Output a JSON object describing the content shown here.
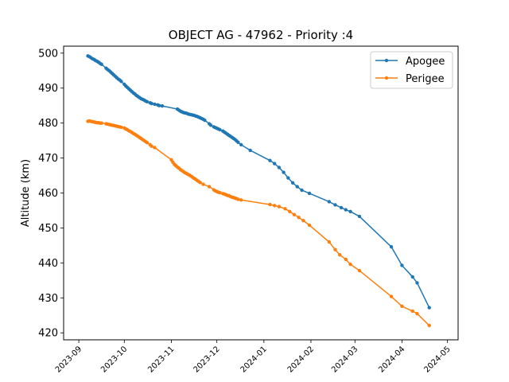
{
  "chart_data": {
    "type": "line",
    "title": "OBJECT AG - 47962 - Priority :4",
    "xlabel": "",
    "ylabel": "Altitude (km)",
    "x_type": "date",
    "xlim": [
      "2023-08-22",
      "2024-05-08"
    ],
    "ylim": [
      418,
      502
    ],
    "yticks": [
      420,
      430,
      440,
      450,
      460,
      470,
      480,
      490,
      500
    ],
    "xticks": [
      "2023-09",
      "2023-10",
      "2023-11",
      "2023-12",
      "2024-01",
      "2024-02",
      "2024-03",
      "2024-04",
      "2024-05"
    ],
    "grid": false,
    "legend_position": "top-right",
    "series": [
      {
        "name": "Apogee",
        "color": "#1f77b4",
        "points": [
          [
            "2023-09-07",
            499.2
          ],
          [
            "2023-09-08",
            499.0
          ],
          [
            "2023-09-09",
            498.7
          ],
          [
            "2023-09-10",
            498.4
          ],
          [
            "2023-09-11",
            498.2
          ],
          [
            "2023-09-12",
            497.9
          ],
          [
            "2023-09-13",
            497.7
          ],
          [
            "2023-09-14",
            497.4
          ],
          [
            "2023-09-15",
            497.1
          ],
          [
            "2023-09-16",
            496.8
          ],
          [
            "2023-09-19",
            495.7
          ],
          [
            "2023-09-20",
            495.3
          ],
          [
            "2023-09-21",
            495.0
          ],
          [
            "2023-09-22",
            494.6
          ],
          [
            "2023-09-23",
            494.2
          ],
          [
            "2023-09-24",
            493.8
          ],
          [
            "2023-09-25",
            493.4
          ],
          [
            "2023-09-26",
            493.0
          ],
          [
            "2023-09-27",
            492.6
          ],
          [
            "2023-09-28",
            492.3
          ],
          [
            "2023-09-29",
            491.9
          ],
          [
            "2023-10-01",
            491.1
          ],
          [
            "2023-10-02",
            490.6
          ],
          [
            "2023-10-03",
            490.2
          ],
          [
            "2023-10-04",
            489.8
          ],
          [
            "2023-10-05",
            489.4
          ],
          [
            "2023-10-06",
            489.0
          ],
          [
            "2023-10-07",
            488.6
          ],
          [
            "2023-10-08",
            488.3
          ],
          [
            "2023-10-09",
            487.9
          ],
          [
            "2023-10-10",
            487.6
          ],
          [
            "2023-10-11",
            487.3
          ],
          [
            "2023-10-12",
            487.0
          ],
          [
            "2023-10-13",
            486.8
          ],
          [
            "2023-10-14",
            486.6
          ],
          [
            "2023-10-15",
            486.3
          ],
          [
            "2023-10-16",
            486.1
          ],
          [
            "2023-10-18",
            485.8
          ],
          [
            "2023-10-19",
            485.6
          ],
          [
            "2023-10-21",
            485.4
          ],
          [
            "2023-10-23",
            485.2
          ],
          [
            "2023-10-24",
            485.0
          ],
          [
            "2023-10-26",
            484.9
          ],
          [
            "2023-11-05",
            484.0
          ],
          [
            "2023-11-06",
            483.7
          ],
          [
            "2023-11-07",
            483.4
          ],
          [
            "2023-11-08",
            483.2
          ],
          [
            "2023-11-09",
            483.0
          ],
          [
            "2023-11-10",
            482.9
          ],
          [
            "2023-11-11",
            482.8
          ],
          [
            "2023-11-12",
            482.6
          ],
          [
            "2023-11-13",
            482.5
          ],
          [
            "2023-11-14",
            482.4
          ],
          [
            "2023-11-15",
            482.3
          ],
          [
            "2023-11-16",
            482.2
          ],
          [
            "2023-11-17",
            482.0
          ],
          [
            "2023-11-18",
            481.9
          ],
          [
            "2023-11-19",
            481.7
          ],
          [
            "2023-11-20",
            481.5
          ],
          [
            "2023-11-21",
            481.3
          ],
          [
            "2023-11-22",
            481.1
          ],
          [
            "2023-11-23",
            480.8
          ],
          [
            "2023-11-26",
            479.8
          ],
          [
            "2023-11-27",
            479.4
          ],
          [
            "2023-11-29",
            478.9
          ],
          [
            "2023-11-30",
            478.7
          ],
          [
            "2023-12-01",
            478.5
          ],
          [
            "2023-12-02",
            478.3
          ],
          [
            "2023-12-03",
            478.1
          ],
          [
            "2023-12-05",
            477.7
          ],
          [
            "2023-12-06",
            477.4
          ],
          [
            "2023-12-07",
            477.1
          ],
          [
            "2023-12-08",
            476.8
          ],
          [
            "2023-12-09",
            476.5
          ],
          [
            "2023-12-10",
            476.2
          ],
          [
            "2023-12-11",
            475.9
          ],
          [
            "2023-12-12",
            475.6
          ],
          [
            "2023-12-13",
            475.3
          ],
          [
            "2023-12-14",
            474.9
          ],
          [
            "2023-12-15",
            474.5
          ],
          [
            "2023-12-17",
            473.8
          ],
          [
            "2023-12-23",
            472.2
          ],
          [
            "2024-01-05",
            469.3
          ],
          [
            "2024-01-08",
            468.4
          ],
          [
            "2024-01-11",
            467.3
          ],
          [
            "2024-01-14",
            465.9
          ],
          [
            "2024-01-17",
            464.3
          ],
          [
            "2024-01-20",
            462.9
          ],
          [
            "2024-01-23",
            461.8
          ],
          [
            "2024-01-26",
            460.8
          ],
          [
            "2024-01-31",
            459.9
          ],
          [
            "2024-02-13",
            457.5
          ],
          [
            "2024-02-17",
            456.6
          ],
          [
            "2024-02-21",
            455.8
          ],
          [
            "2024-02-24",
            455.2
          ],
          [
            "2024-02-27",
            454.7
          ],
          [
            "2024-03-04",
            453.3
          ],
          [
            "2024-03-25",
            444.6
          ],
          [
            "2024-04-01",
            439.3
          ],
          [
            "2024-04-08",
            436.0
          ],
          [
            "2024-04-11",
            434.3
          ],
          [
            "2024-04-19",
            427.2
          ]
        ]
      },
      {
        "name": "Perigee",
        "color": "#ff7f0e",
        "points": [
          [
            "2023-09-07",
            480.5
          ],
          [
            "2023-09-08",
            480.6
          ],
          [
            "2023-09-09",
            480.5
          ],
          [
            "2023-09-10",
            480.4
          ],
          [
            "2023-09-11",
            480.3
          ],
          [
            "2023-09-12",
            480.2
          ],
          [
            "2023-09-13",
            480.1
          ],
          [
            "2023-09-14",
            480.1
          ],
          [
            "2023-09-15",
            480.0
          ],
          [
            "2023-09-16",
            480.0
          ],
          [
            "2023-09-19",
            479.8
          ],
          [
            "2023-09-20",
            479.7
          ],
          [
            "2023-09-21",
            479.6
          ],
          [
            "2023-09-22",
            479.5
          ],
          [
            "2023-09-23",
            479.4
          ],
          [
            "2023-09-24",
            479.3
          ],
          [
            "2023-09-25",
            479.2
          ],
          [
            "2023-09-26",
            479.1
          ],
          [
            "2023-09-27",
            479.0
          ],
          [
            "2023-09-28",
            478.9
          ],
          [
            "2023-09-29",
            478.8
          ],
          [
            "2023-10-01",
            478.6
          ],
          [
            "2023-10-02",
            478.3
          ],
          [
            "2023-10-03",
            478.1
          ],
          [
            "2023-10-04",
            477.8
          ],
          [
            "2023-10-05",
            477.6
          ],
          [
            "2023-10-06",
            477.3
          ],
          [
            "2023-10-07",
            477.0
          ],
          [
            "2023-10-08",
            476.8
          ],
          [
            "2023-10-09",
            476.5
          ],
          [
            "2023-10-10",
            476.2
          ],
          [
            "2023-10-11",
            475.9
          ],
          [
            "2023-10-12",
            475.6
          ],
          [
            "2023-10-13",
            475.3
          ],
          [
            "2023-10-14",
            475.0
          ],
          [
            "2023-10-15",
            474.7
          ],
          [
            "2023-10-16",
            474.4
          ],
          [
            "2023-10-18",
            473.8
          ],
          [
            "2023-10-19",
            473.4
          ],
          [
            "2023-10-21",
            473.0
          ],
          [
            "2023-11-01",
            469.5
          ],
          [
            "2023-11-02",
            468.8
          ],
          [
            "2023-11-03",
            468.2
          ],
          [
            "2023-11-04",
            467.8
          ],
          [
            "2023-11-05",
            467.4
          ],
          [
            "2023-11-06",
            467.1
          ],
          [
            "2023-11-07",
            466.7
          ],
          [
            "2023-11-08",
            466.4
          ],
          [
            "2023-11-09",
            466.1
          ],
          [
            "2023-11-10",
            465.8
          ],
          [
            "2023-11-11",
            465.6
          ],
          [
            "2023-11-12",
            465.3
          ],
          [
            "2023-11-13",
            465.1
          ],
          [
            "2023-11-14",
            464.8
          ],
          [
            "2023-11-15",
            464.5
          ],
          [
            "2023-11-16",
            464.2
          ],
          [
            "2023-11-17",
            463.9
          ],
          [
            "2023-11-18",
            463.6
          ],
          [
            "2023-11-19",
            463.3
          ],
          [
            "2023-11-20",
            463.0
          ],
          [
            "2023-11-22",
            462.5
          ],
          [
            "2023-11-26",
            461.8
          ],
          [
            "2023-11-29",
            460.9
          ],
          [
            "2023-11-30",
            460.6
          ],
          [
            "2023-12-01",
            460.4
          ],
          [
            "2023-12-02",
            460.2
          ],
          [
            "2023-12-03",
            460.1
          ],
          [
            "2023-12-05",
            459.8
          ],
          [
            "2023-12-06",
            459.7
          ],
          [
            "2023-12-07",
            459.5
          ],
          [
            "2023-12-08",
            459.3
          ],
          [
            "2023-12-09",
            459.2
          ],
          [
            "2023-12-10",
            459.0
          ],
          [
            "2023-12-11",
            458.8
          ],
          [
            "2023-12-12",
            458.7
          ],
          [
            "2023-12-13",
            458.5
          ],
          [
            "2023-12-14",
            458.4
          ],
          [
            "2023-12-15",
            458.2
          ],
          [
            "2023-12-17",
            458.0
          ],
          [
            "2024-01-05",
            456.7
          ],
          [
            "2024-01-08",
            456.4
          ],
          [
            "2024-01-11",
            456.1
          ],
          [
            "2024-01-15",
            455.5
          ],
          [
            "2024-01-18",
            454.7
          ],
          [
            "2024-01-21",
            453.8
          ],
          [
            "2024-01-24",
            453.0
          ],
          [
            "2024-01-27",
            452.1
          ],
          [
            "2024-01-31",
            450.8
          ],
          [
            "2024-02-13",
            446.0
          ],
          [
            "2024-02-17",
            443.8
          ],
          [
            "2024-02-20",
            442.3
          ],
          [
            "2024-02-24",
            441.0
          ],
          [
            "2024-02-27",
            439.6
          ],
          [
            "2024-03-04",
            437.8
          ],
          [
            "2024-03-25",
            430.4
          ],
          [
            "2024-04-01",
            427.6
          ],
          [
            "2024-04-08",
            426.2
          ],
          [
            "2024-04-11",
            425.5
          ],
          [
            "2024-04-19",
            422.1
          ]
        ]
      }
    ]
  }
}
